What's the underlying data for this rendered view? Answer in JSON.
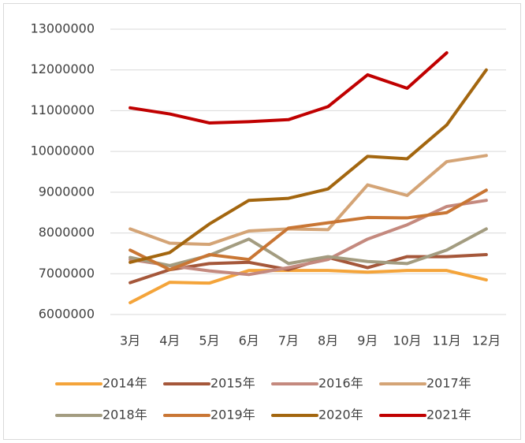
{
  "chart_data": {
    "type": "line",
    "categories": [
      "3月",
      "4月",
      "5月",
      "6月",
      "7月",
      "8月",
      "9月",
      "10月",
      "11月",
      "12月"
    ],
    "series": [
      {
        "name": "2014年",
        "color": "#f4a43a",
        "values": [
          6290000,
          6790000,
          6770000,
          7080000,
          7080000,
          7080000,
          7040000,
          7080000,
          7080000,
          6850000
        ]
      },
      {
        "name": "2015年",
        "color": "#a5573a",
        "values": [
          6780000,
          7100000,
          7250000,
          7280000,
          7100000,
          7400000,
          7150000,
          7420000,
          7420000,
          7470000
        ]
      },
      {
        "name": "2016年",
        "color": "#c4897e",
        "values": [
          7350000,
          7200000,
          7070000,
          6980000,
          7150000,
          7350000,
          7850000,
          8200000,
          8650000,
          8800000
        ]
      },
      {
        "name": "2017年",
        "color": "#d4a476",
        "values": [
          8100000,
          7750000,
          7720000,
          8050000,
          8100000,
          8080000,
          9180000,
          8920000,
          9750000,
          9900000
        ]
      },
      {
        "name": "2018年",
        "color": "#a39c80",
        "values": [
          7400000,
          7200000,
          7450000,
          7850000,
          7250000,
          7420000,
          7300000,
          7250000,
          7580000,
          8100000
        ]
      },
      {
        "name": "2019年",
        "color": "#c97634",
        "values": [
          7580000,
          7100000,
          7470000,
          7350000,
          8120000,
          8250000,
          8380000,
          8370000,
          8500000,
          9050000
        ]
      },
      {
        "name": "2020年",
        "color": "#a3660f",
        "values": [
          7280000,
          7520000,
          8220000,
          8800000,
          8850000,
          9080000,
          9880000,
          9820000,
          10650000,
          12000000
        ]
      },
      {
        "name": "2021年",
        "color": "#c00000",
        "values": [
          11070000,
          10920000,
          10700000,
          10730000,
          10780000,
          11100000,
          11880000,
          11550000,
          12420000,
          null
        ]
      }
    ],
    "ylim": [
      6000000,
      13000000
    ],
    "yticks": [
      6000000,
      7000000,
      8000000,
      9000000,
      10000000,
      11000000,
      12000000,
      13000000
    ],
    "grid": true,
    "legend": "bottom"
  }
}
